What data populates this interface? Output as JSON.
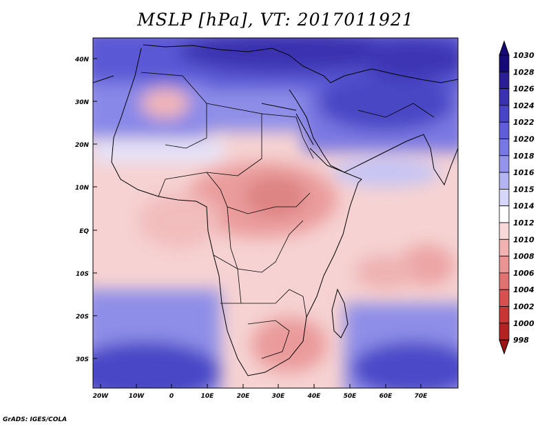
{
  "title": "MSLP [hPa], VT: 2017011921",
  "credit": "GrADS: IGES/COLA",
  "map": {
    "variable": "MSLP",
    "units": "hPa",
    "valid_time": "2017011921",
    "lon_ticks": [
      "20W",
      "10W",
      "0",
      "10E",
      "20E",
      "30E",
      "40E",
      "50E",
      "60E",
      "70E"
    ],
    "lat_ticks": [
      "40N",
      "30N",
      "20N",
      "10N",
      "EQ",
      "10S",
      "20S",
      "30S"
    ]
  },
  "colorbar": {
    "levels": [
      {
        "label": "1030",
        "color": "#160a78"
      },
      {
        "label": "1028",
        "color": "#2a1e96"
      },
      {
        "label": "1026",
        "color": "#3a31b0"
      },
      {
        "label": "1024",
        "color": "#4a45c6"
      },
      {
        "label": "1022",
        "color": "#5f5ed8"
      },
      {
        "label": "1020",
        "color": "#7878e4"
      },
      {
        "label": "1018",
        "color": "#9494ec"
      },
      {
        "label": "1016",
        "color": "#b4b4f4"
      },
      {
        "label": "1015",
        "color": "#d6d6fa"
      },
      {
        "label": "1014",
        "color": "#ffffff"
      },
      {
        "label": "1012",
        "color": "#f8d8d8"
      },
      {
        "label": "1010",
        "color": "#f2b2b2"
      },
      {
        "label": "1008",
        "color": "#ea9494"
      },
      {
        "label": "1006",
        "color": "#e07272"
      },
      {
        "label": "1004",
        "color": "#d85050"
      },
      {
        "label": "1002",
        "color": "#c93434"
      },
      {
        "label": "1000",
        "color": "#b42222"
      },
      {
        "label": "998",
        "color": "#9a1414"
      }
    ]
  }
}
